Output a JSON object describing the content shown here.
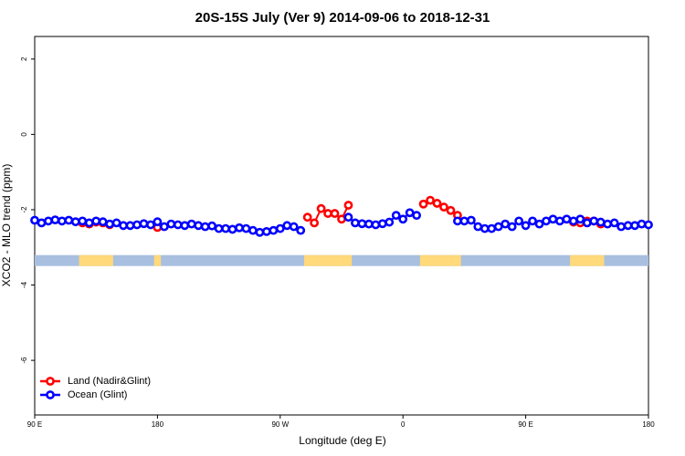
{
  "chart_data": {
    "type": "line",
    "title": "20S-15S July (Ver 9)   2014-09-06 to 2018-12-31",
    "xlabel": "Longitude (deg E)",
    "ylabel": "XCO2 - MLO trend (ppm)",
    "xlim": [
      90,
      540
    ],
    "xticks": [
      {
        "value": 90,
        "label": "90 E"
      },
      {
        "value": 180,
        "label": "180"
      },
      {
        "value": 270,
        "label": "90 W"
      },
      {
        "value": 360,
        "label": "0"
      },
      {
        "value": 450,
        "label": "90 E"
      },
      {
        "value": 540,
        "label": "180"
      }
    ],
    "ylim": [
      -7.45,
      2.6
    ],
    "yticks": [
      2,
      0,
      -2,
      -4,
      -6
    ],
    "legend": "bottom-left",
    "x": [
      90,
      95,
      100,
      105,
      110,
      115,
      120,
      125,
      130,
      135,
      140,
      145,
      150,
      155,
      160,
      165,
      170,
      175,
      180,
      185,
      190,
      195,
      200,
      205,
      210,
      215,
      220,
      225,
      230,
      235,
      240,
      245,
      250,
      255,
      260,
      265,
      270,
      275,
      280,
      285,
      290,
      295,
      300,
      305,
      310,
      315,
      320,
      325,
      330,
      335,
      340,
      345,
      350,
      355,
      360,
      365,
      370,
      375,
      380,
      385,
      390,
      395,
      400,
      405,
      410,
      415,
      420,
      425,
      430,
      435,
      440,
      445,
      450,
      455,
      460,
      465,
      470,
      475,
      480,
      485,
      490,
      495,
      500,
      505,
      510,
      515,
      520,
      525,
      530,
      535,
      540
    ],
    "series": [
      {
        "name": "Land (Nadir&Glint)",
        "color": "#ff0000",
        "values": [
          null,
          null,
          null,
          null,
          null,
          null,
          null,
          -2.35,
          -2.38,
          -2.33,
          -2.35,
          -2.4,
          null,
          null,
          null,
          null,
          null,
          null,
          -2.47,
          null,
          null,
          null,
          null,
          null,
          null,
          null,
          null,
          null,
          null,
          null,
          null,
          null,
          null,
          null,
          null,
          null,
          null,
          null,
          null,
          null,
          -2.2,
          -2.35,
          -1.97,
          -2.1,
          -2.1,
          -2.25,
          -1.88,
          null,
          null,
          null,
          null,
          null,
          null,
          null,
          null,
          null,
          null,
          -1.85,
          -1.75,
          -1.83,
          -1.93,
          -2.02,
          -2.15,
          null,
          null,
          null,
          null,
          null,
          null,
          null,
          null,
          null,
          null,
          null,
          null,
          null,
          null,
          null,
          null,
          -2.33,
          -2.35,
          -2.3,
          -2.3,
          -2.38,
          null,
          null,
          null,
          null,
          null,
          null,
          null
        ]
      },
      {
        "name": "Ocean (Glint)",
        "color": "#0000ff",
        "values": [
          -2.28,
          -2.35,
          -2.3,
          -2.27,
          -2.3,
          -2.28,
          -2.32,
          -2.3,
          -2.35,
          -2.3,
          -2.32,
          -2.38,
          -2.35,
          -2.42,
          -2.42,
          -2.4,
          -2.37,
          -2.4,
          -2.32,
          -2.45,
          -2.38,
          -2.4,
          -2.42,
          -2.38,
          -2.42,
          -2.45,
          -2.43,
          -2.5,
          -2.5,
          -2.52,
          -2.48,
          -2.5,
          -2.55,
          -2.6,
          -2.58,
          -2.55,
          -2.5,
          -2.42,
          -2.45,
          -2.55,
          null,
          null,
          null,
          null,
          null,
          null,
          -2.2,
          -2.35,
          -2.37,
          -2.38,
          -2.4,
          -2.37,
          -2.33,
          -2.15,
          -2.25,
          -2.08,
          -2.15,
          null,
          null,
          null,
          null,
          null,
          -2.3,
          -2.3,
          -2.28,
          -2.45,
          -2.5,
          -2.5,
          -2.45,
          -2.38,
          -2.45,
          -2.3,
          -2.42,
          -2.3,
          -2.38,
          -2.3,
          -2.25,
          -2.3,
          -2.25,
          -2.3,
          -2.25,
          -2.35,
          -2.3,
          -2.33,
          -2.38,
          -2.35,
          -2.45,
          -2.42,
          -2.42,
          -2.38,
          -2.4
        ]
      }
    ]
  }
}
